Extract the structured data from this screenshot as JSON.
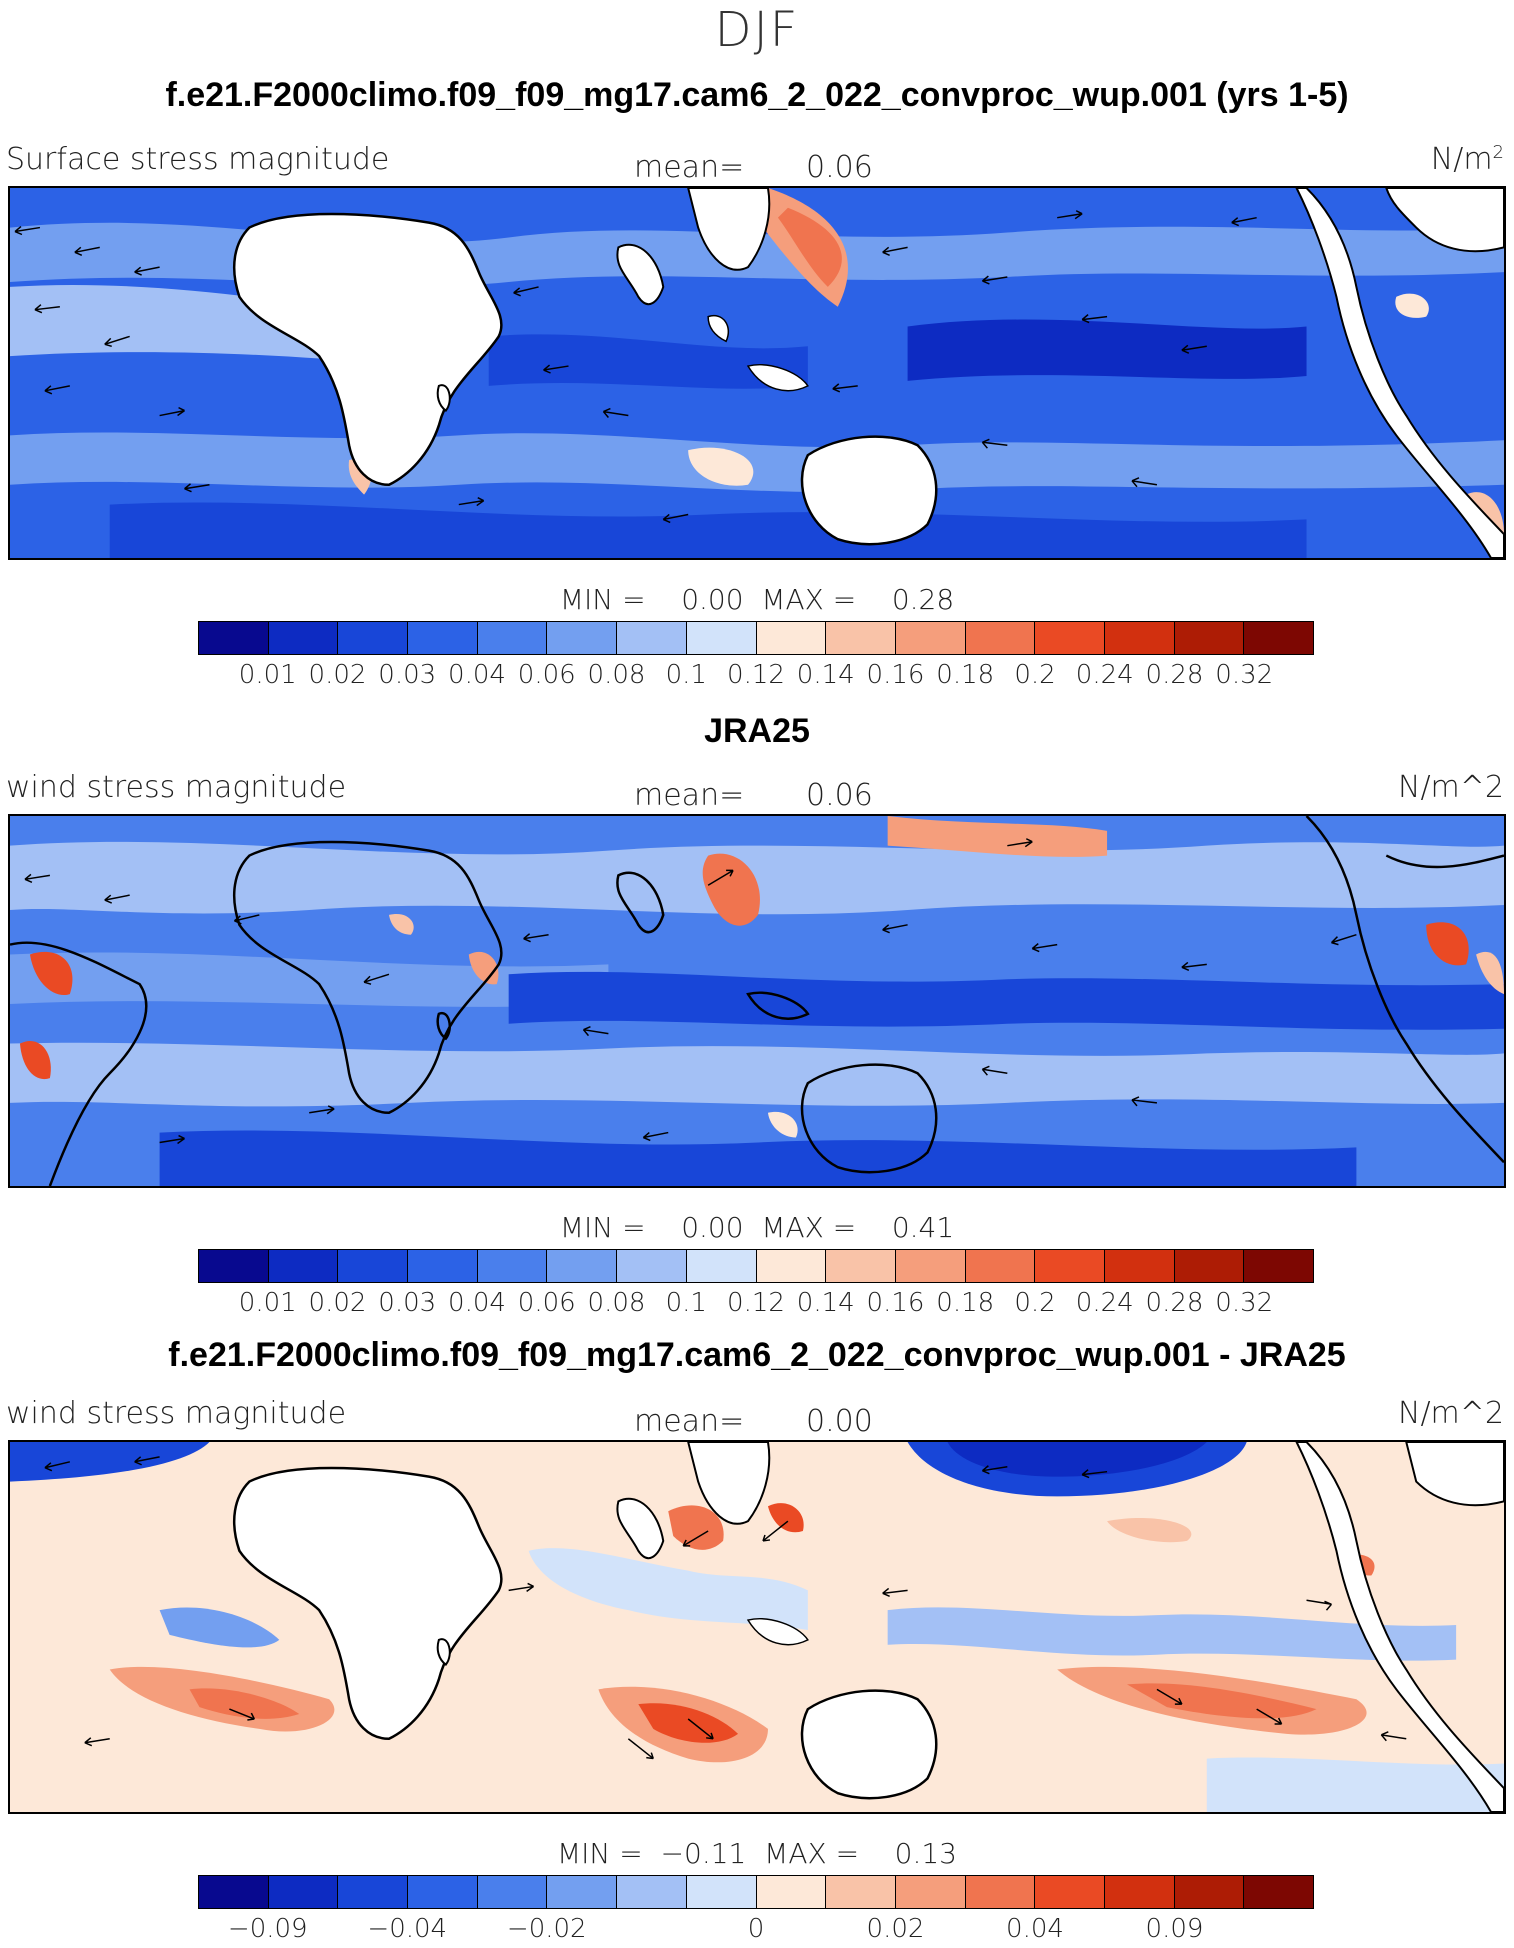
{
  "page_title": "DJF",
  "colors": {
    "scale": [
      "#08098f",
      "#0d2bc2",
      "#1846d8",
      "#2c62e6",
      "#4a7fec",
      "#739ff0",
      "#a3c0f5",
      "#d2e3fa",
      "#fde8d8",
      "#f9c3a8",
      "#f59e7c",
      "#f0744f",
      "#ea4a24",
      "#d2300f",
      "#ad1c05",
      "#7d0702"
    ],
    "land": "#ffffff",
    "coast": "#000000",
    "arrow": "#000000"
  },
  "panels": [
    {
      "heading": "f.e21.F2000climo.f09_f09_mg17.cam6_2_022_convproc_wup.001 (yrs 1-5)",
      "left_label": "Surface stress magnitude",
      "mean_label": "mean=",
      "mean_value": "0.06",
      "units_main": "N/m",
      "units_sup": "2",
      "min_label": "MIN =",
      "min_value": "0.00",
      "max_label": "MAX =",
      "max_value": "0.28",
      "ticks": [
        "0.01",
        "0.02",
        "0.03",
        "0.04",
        "0.06",
        "0.08",
        "0.1",
        "0.12",
        "0.14",
        "0.16",
        "0.18",
        "0.2",
        "0.24",
        "0.28",
        "0.32"
      ]
    },
    {
      "heading": "JRA25",
      "left_label": "wind stress magnitude",
      "mean_label": "mean=",
      "mean_value": "0.06",
      "units_main": "N/m^2",
      "units_sup": "",
      "min_label": "MIN =",
      "min_value": "0.00",
      "max_label": "MAX =",
      "max_value": "0.41",
      "ticks": [
        "0.01",
        "0.02",
        "0.03",
        "0.04",
        "0.06",
        "0.08",
        "0.1",
        "0.12",
        "0.14",
        "0.16",
        "0.18",
        "0.2",
        "0.24",
        "0.28",
        "0.32"
      ]
    },
    {
      "heading": "f.e21.F2000climo.f09_f09_mg17.cam6_2_022_convproc_wup.001 - JRA25",
      "left_label": "wind stress magnitude",
      "mean_label": "mean=",
      "mean_value": "0.00",
      "units_main": "N/m^2",
      "units_sup": "",
      "min_label": "MIN =",
      "min_value": "−0.11",
      "max_label": "MAX =",
      "max_value": "0.13",
      "ticks": [
        "−0.09",
        "",
        "−0.04",
        "",
        "−0.02",
        "",
        "",
        "0",
        "",
        "0.02",
        "",
        "0.04",
        "",
        "0.09",
        ""
      ]
    }
  ]
}
